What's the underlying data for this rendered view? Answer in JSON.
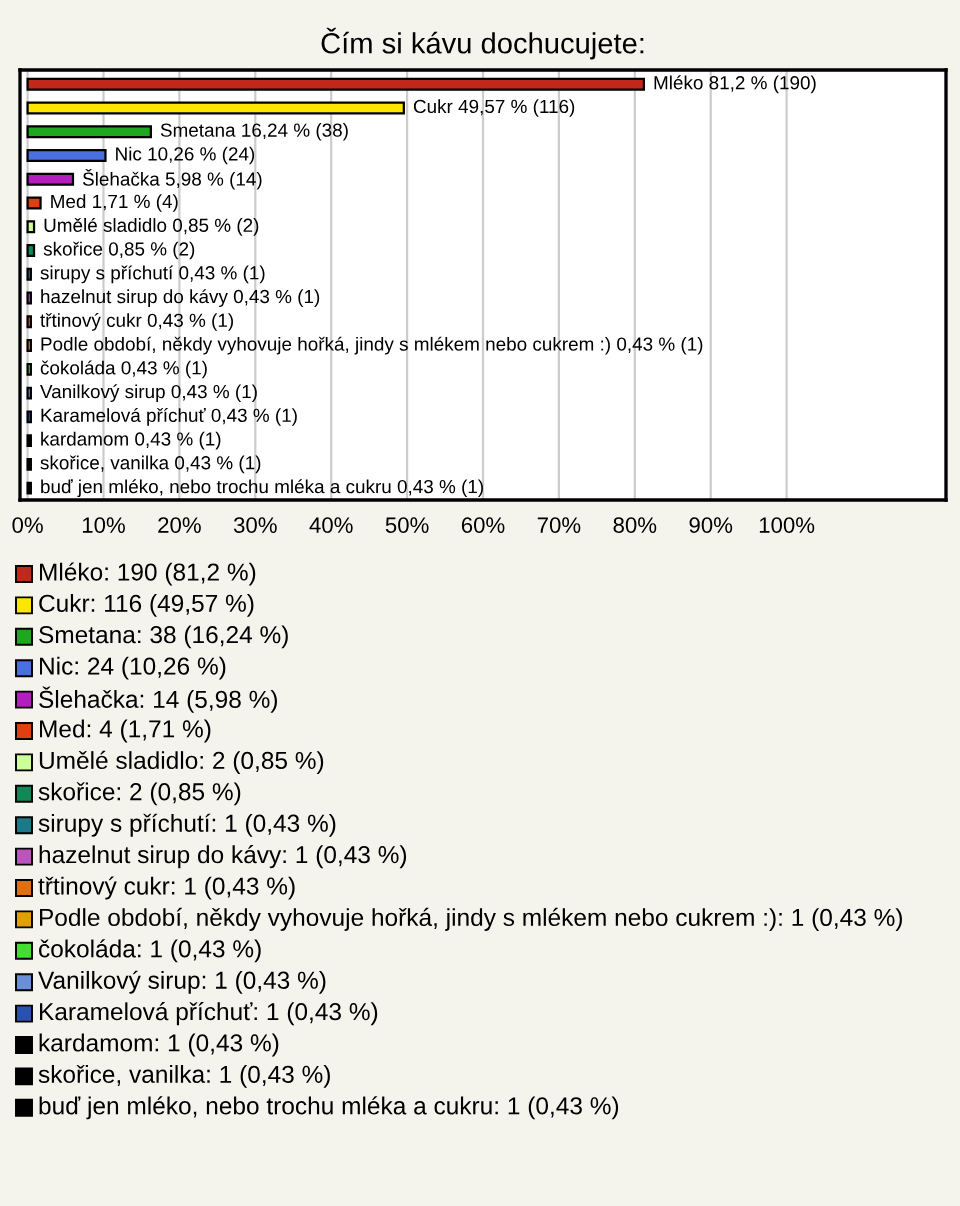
{
  "chart_data": {
    "type": "bar",
    "orientation": "horizontal",
    "title": "Čím si kávu dochucujete:",
    "categories": [
      "Mléko",
      "Cukr",
      "Smetana",
      "Nic",
      "Šlehačka",
      "Med",
      "Umělé sladidlo",
      "skořice",
      "sirupy s příchutí",
      "hazelnut sirup do kávy",
      "třtinový cukr",
      "Podle období, někdy vyhovuje hořká, jindy s mlékem nebo cukrem :)",
      "čokoláda",
      "Vanilkový sirup",
      "Karamelová příchuť",
      "kardamom",
      "skořice, vanilka",
      "buď jen mléko, nebo trochu mléka a cukru"
    ],
    "values": [
      81.2,
      49.57,
      16.24,
      10.26,
      5.98,
      1.71,
      0.85,
      0.85,
      0.43,
      0.43,
      0.43,
      0.43,
      0.43,
      0.43,
      0.43,
      0.43,
      0.43,
      0.43
    ],
    "value_labels": [
      "81,2 % (190)",
      "49,57 % (116)",
      "16,24 % (38)",
      "10,26 % (24)",
      "5,98 % (14)",
      "1,71 % (4)",
      "0,85 % (2)",
      "0,85 % (2)",
      "0,43 % (1)",
      "0,43 % (1)",
      "0,43 % (1)",
      "0,43 % (1)",
      "0,43 % (1)",
      "0,43 % (1)",
      "0,43 % (1)",
      "0,43 % (1)",
      "0,43 % (1)",
      "0,43 % (1)"
    ],
    "colors": [
      "#c0281c",
      "#ffe600",
      "#1fa81f",
      "#4a6fe0",
      "#b31fbf",
      "#e04010",
      "#ccff99",
      "#118855",
      "#1a7a8a",
      "#bb55bb",
      "#e07010",
      "#e0a000",
      "#44dd33",
      "#6a8fd8",
      "#2a50b0",
      "#000000",
      "#000000",
      "#000000"
    ],
    "xlim": [
      -1,
      121
    ],
    "xticks": [
      {
        "value": 0,
        "label": "0%"
      },
      {
        "value": 10,
        "label": "10%"
      },
      {
        "value": 20,
        "label": "20%"
      },
      {
        "value": 30,
        "label": "30%"
      },
      {
        "value": 40,
        "label": "40%"
      },
      {
        "value": 50,
        "label": "50%"
      },
      {
        "value": 60,
        "label": "60%"
      },
      {
        "value": 70,
        "label": "70%"
      },
      {
        "value": 80,
        "label": "80%"
      },
      {
        "value": 90,
        "label": "90%"
      },
      {
        "value": 100,
        "label": "100%"
      }
    ],
    "tick_labels": "x",
    "grid": "x",
    "annotations": [
      "Mléko: 190 (81,2 %)",
      "Cukr: 116 (49,57 %)",
      "Smetana: 38 (16,24 %)",
      "Nic: 24 (10,26 %)",
      "Šlehačka: 14 (5,98 %)",
      "Med: 4 (1,71 %)",
      "Umělé sladidlo: 2 (0,85 %)",
      "skořice: 2 (0,85 %)",
      "sirupy s příchutí: 1 (0,43 %)",
      "hazelnut sirup do kávy: 1 (0,43 %)",
      "třtinový cukr: 1 (0,43 %)",
      "Podle období, někdy vyhovuje hořká, jindy s mlékem nebo cukrem :): 1 (0,43 %)",
      "čokoláda: 1 (0,43 %)",
      "Vanilkový sirup: 1 (0,43 %)",
      "Karamelová příchuť: 1 (0,43 %)",
      "kardamom: 1 (0,43 %)",
      "skořice, vanilka: 1 (0,43 %)",
      "buď jen mléko, nebo trochu mléka a cukru: 1 (0,43 %)"
    ]
  }
}
